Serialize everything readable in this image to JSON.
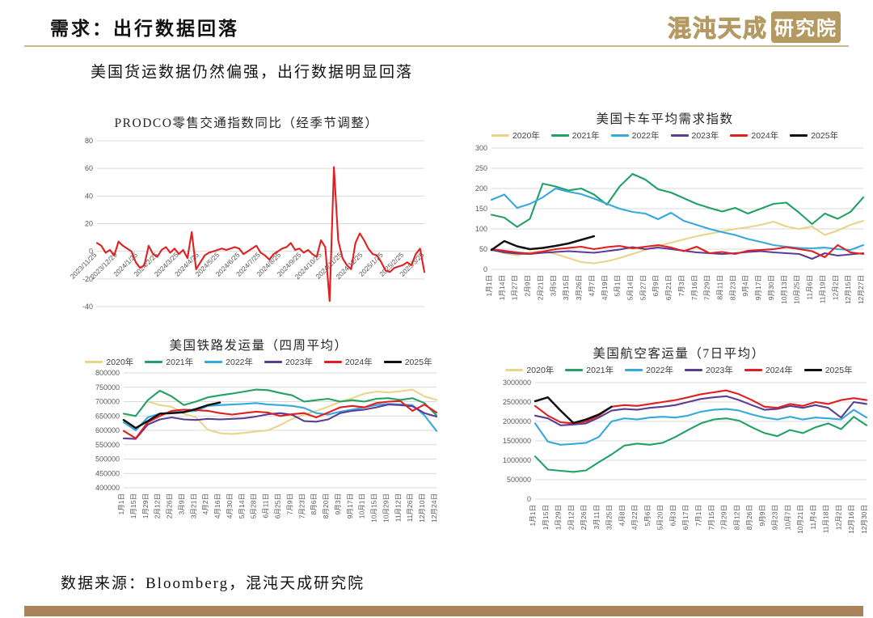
{
  "page": {
    "title": "需求：出行数据回落",
    "subtitle": "美国货运数据仍然偏强，出行数据明显回落",
    "footer": "数据来源：Bloomberg，混沌天成研究院",
    "logo": {
      "text_outline": "混沌天成",
      "text_boxed": "研究院"
    },
    "colors": {
      "accent_gold": "#b49a62",
      "header_line": "#cbb98c",
      "bottom_bar": "#a9845b"
    }
  },
  "chart_data": [
    {
      "id": "prodco-retail-traffic-yoy",
      "type": "line",
      "title": "PRODCO零售交通指数同比（经季节调整）",
      "ylim": [
        -40,
        80
      ],
      "ystep": 20,
      "grid": true,
      "legend_position": null,
      "x_labels": [
        "2023/11/25",
        "2023/12/25",
        "2024/1/25",
        "2024/2/25",
        "2024/3/25",
        "2024/4/25",
        "2024/5/25",
        "2024/6/25",
        "2024/7/25",
        "2024/8/25",
        "2024/9/25",
        "2024/10/25",
        "2024/11/25",
        "2024/12/25",
        "2025/1/25",
        "2025/2/25",
        "2025/3/25"
      ],
      "series": [
        {
          "name": "PRODCO同比",
          "color": "#df2020",
          "values": [
            6,
            4,
            -1,
            1,
            -3,
            7,
            4,
            2,
            0,
            -8,
            -12,
            -10,
            4,
            -2,
            -4,
            1,
            3,
            -1,
            2,
            -2,
            1,
            -5,
            14,
            -13,
            -8,
            -3,
            -1,
            0,
            1,
            2,
            1,
            2,
            3,
            2,
            -2,
            0,
            2,
            4,
            -1,
            -3,
            -6,
            -2,
            0,
            2,
            3,
            6,
            1,
            2,
            -1,
            1,
            -2,
            -4,
            8,
            3,
            -36,
            61,
            8,
            -5,
            -10,
            -13,
            6,
            13,
            8,
            2,
            -2,
            -3,
            -8,
            -14,
            -15,
            -12,
            -11,
            -10,
            -8,
            -10,
            -2,
            2,
            -15
          ]
        }
      ]
    },
    {
      "id": "us-truck-avg-demand-index",
      "type": "line",
      "title": "美国卡车平均需求指数",
      "ylim": [
        0,
        300
      ],
      "ystep": 50,
      "grid": true,
      "legend_position": "top",
      "x_labels": [
        "1月1日",
        "1月14日",
        "1月27日",
        "2月9日",
        "2月21日",
        "3月5日",
        "3月15日",
        "3月26日",
        "4月7日",
        "4月19日",
        "5月1日",
        "5月14日",
        "5月27日",
        "6月9日",
        "6月21日",
        "7月3日",
        "7月16日",
        "7月29日",
        "8月11日",
        "8月23日",
        "9月4日",
        "9月17日",
        "9月30日",
        "10月13日",
        "10月25日",
        "11月6日",
        "11月19日",
        "12月2日",
        "12月15日",
        "12月27日"
      ],
      "series": [
        {
          "name": "2020年",
          "color": "#ead489",
          "values": [
            50,
            40,
            35,
            42,
            45,
            38,
            28,
            18,
            15,
            20,
            28,
            38,
            48,
            58,
            66,
            74,
            82,
            88,
            94,
            100,
            104,
            110,
            118,
            106,
            100,
            106,
            85,
            96,
            110,
            120
          ]
        },
        {
          "name": "2021年",
          "color": "#23a164",
          "values": [
            135,
            128,
            105,
            125,
            212,
            205,
            195,
            200,
            185,
            160,
            205,
            236,
            222,
            198,
            190,
            176,
            162,
            152,
            143,
            152,
            138,
            150,
            162,
            165,
            140,
            112,
            138,
            125,
            142,
            178
          ]
        },
        {
          "name": "2022年",
          "color": "#36a9dc",
          "values": [
            172,
            185,
            152,
            162,
            178,
            200,
            192,
            186,
            175,
            162,
            150,
            142,
            138,
            124,
            140,
            120,
            110,
            100,
            92,
            85,
            75,
            68,
            60,
            56,
            53,
            52,
            54,
            50,
            48,
            60
          ]
        },
        {
          "name": "2023年",
          "color": "#5b3d94",
          "values": [
            48,
            42,
            39,
            38,
            41,
            43,
            45,
            43,
            41,
            45,
            49,
            55,
            50,
            54,
            50,
            46,
            42,
            40,
            38,
            40,
            43,
            45,
            42,
            40,
            38,
            26,
            40,
            34,
            37,
            40
          ]
        },
        {
          "name": "2024年",
          "color": "#df2020",
          "values": [
            50,
            46,
            42,
            39,
            44,
            50,
            53,
            56,
            50,
            55,
            58,
            52,
            56,
            60,
            54,
            45,
            56,
            40,
            43,
            38,
            46,
            48,
            50,
            55,
            50,
            45,
            30,
            60,
            42,
            38
          ]
        },
        {
          "name": "2025年",
          "color": "#111111",
          "values": [
            48,
            70,
            57,
            50,
            53,
            58,
            64,
            73,
            82
          ]
        }
      ]
    },
    {
      "id": "us-rail-carloads-4wk-avg",
      "type": "line",
      "title": "美国铁路发运量（四周平均）",
      "ylim": [
        400000,
        800000
      ],
      "ystep": 50000,
      "grid": true,
      "legend_position": "top",
      "x_labels": [
        "1月1日",
        "1月15日",
        "1月29日",
        "2月12日",
        "2月26日",
        "3月9日",
        "3月21日",
        "4月2日",
        "4月16日",
        "4月30日",
        "5月14日",
        "5月28日",
        "6月11日",
        "6月25日",
        "7月9日",
        "7月23日",
        "8月6日",
        "8月20日",
        "9月3日",
        "9月17日",
        "10月1日",
        "10月15日",
        "10月29日",
        "11月12日",
        "11月26日",
        "12月10日",
        "12月24日"
      ],
      "series": [
        {
          "name": "2020年",
          "color": "#ead489",
          "values": [
            null,
            null,
            700000,
            688000,
            682000,
            658000,
            645000,
            602000,
            590000,
            587000,
            591000,
            596000,
            600000,
            618000,
            640000,
            654000,
            668000,
            682000,
            700000,
            712000,
            728000,
            735000,
            732000,
            736000,
            742000,
            718000,
            706000
          ]
        },
        {
          "name": "2021年",
          "color": "#23a164",
          "values": [
            658000,
            650000,
            705000,
            738000,
            718000,
            688000,
            700000,
            715000,
            722000,
            728000,
            735000,
            742000,
            740000,
            730000,
            722000,
            700000,
            705000,
            710000,
            700000,
            705000,
            700000,
            710000,
            712000,
            706000,
            712000,
            695000,
            652000
          ]
        },
        {
          "name": "2022年",
          "color": "#36a9dc",
          "values": [
            628000,
            600000,
            645000,
            658000,
            662000,
            665000,
            668000,
            685000,
            688000,
            690000,
            692000,
            695000,
            690000,
            688000,
            685000,
            678000,
            660000,
            655000,
            665000,
            672000,
            680000,
            688000,
            692000,
            690000,
            688000,
            652000,
            598000
          ]
        },
        {
          "name": "2023年",
          "color": "#5b3d94",
          "values": [
            572000,
            570000,
            620000,
            638000,
            645000,
            638000,
            636000,
            640000,
            638000,
            640000,
            642000,
            648000,
            656000,
            660000,
            654000,
            632000,
            630000,
            638000,
            660000,
            668000,
            672000,
            680000,
            690000,
            688000,
            684000,
            660000,
            648000
          ]
        },
        {
          "name": "2024年",
          "color": "#df2020",
          "values": [
            598000,
            572000,
            628000,
            650000,
            668000,
            672000,
            670000,
            668000,
            660000,
            655000,
            660000,
            665000,
            662000,
            650000,
            656000,
            660000,
            645000,
            662000,
            680000,
            685000,
            680000,
            695000,
            700000,
            702000,
            668000,
            690000,
            662000
          ]
        },
        {
          "name": "2025年",
          "color": "#111111",
          "values": [
            636000,
            608000,
            632000,
            658000,
            660000,
            663000,
            674000,
            688000,
            697000
          ]
        }
      ]
    },
    {
      "id": "us-air-passengers-7d-avg",
      "type": "line",
      "title": "美国航空客运量（7日平均）",
      "ylim": [
        0,
        3000000
      ],
      "ystep": 500000,
      "grid": true,
      "legend_position": "top",
      "x_labels": [
        "1月1日",
        "1月15日",
        "1月29日",
        "2月12日",
        "2月26日",
        "3月11日",
        "3月25日",
        "4月8日",
        "4月22日",
        "5月6日",
        "5月20日",
        "6月3日",
        "6月17日",
        "7月1日",
        "7月15日",
        "7月29日",
        "8月12日",
        "8月26日",
        "9月9日",
        "9月23日",
        "10月7日",
        "10月21日",
        "11月4日",
        "11月18日",
        "12月2日",
        "12月16日",
        "12月30日"
      ],
      "series": [
        {
          "name": "2020年",
          "color": "#ead489",
          "values": []
        },
        {
          "name": "2021年",
          "color": "#23a164",
          "values": [
            1100000,
            760000,
            730000,
            700000,
            740000,
            950000,
            1150000,
            1380000,
            1430000,
            1400000,
            1450000,
            1600000,
            1780000,
            1950000,
            2050000,
            2080000,
            2020000,
            1850000,
            1700000,
            1620000,
            1780000,
            1700000,
            1850000,
            1950000,
            1800000,
            2120000,
            1900000
          ]
        },
        {
          "name": "2022年",
          "color": "#36a9dc",
          "values": [
            1950000,
            1480000,
            1400000,
            1420000,
            1450000,
            1600000,
            2000000,
            2080000,
            2050000,
            2100000,
            2120000,
            2100000,
            2150000,
            2250000,
            2300000,
            2320000,
            2280000,
            2180000,
            2100000,
            2050000,
            2120000,
            2050000,
            2100000,
            2080000,
            2050000,
            2300000,
            2100000
          ]
        },
        {
          "name": "2023年",
          "color": "#5b3d94",
          "values": [
            2150000,
            2080000,
            1900000,
            1920000,
            1950000,
            2100000,
            2280000,
            2320000,
            2300000,
            2350000,
            2380000,
            2420000,
            2500000,
            2580000,
            2620000,
            2650000,
            2550000,
            2420000,
            2300000,
            2320000,
            2400000,
            2350000,
            2420000,
            2350000,
            2100000,
            2500000,
            2450000
          ]
        },
        {
          "name": "2024年",
          "color": "#df2020",
          "values": [
            2400000,
            2150000,
            1980000,
            1950000,
            2000000,
            2150000,
            2380000,
            2420000,
            2400000,
            2450000,
            2500000,
            2550000,
            2620000,
            2700000,
            2750000,
            2800000,
            2700000,
            2550000,
            2380000,
            2350000,
            2450000,
            2400000,
            2500000,
            2450000,
            2550000,
            2600000,
            2550000
          ]
        },
        {
          "name": "2025年",
          "color": "#111111",
          "values": [
            2520000,
            2620000,
            2280000,
            1960000,
            2050000,
            2180000,
            2380000
          ]
        }
      ]
    }
  ]
}
